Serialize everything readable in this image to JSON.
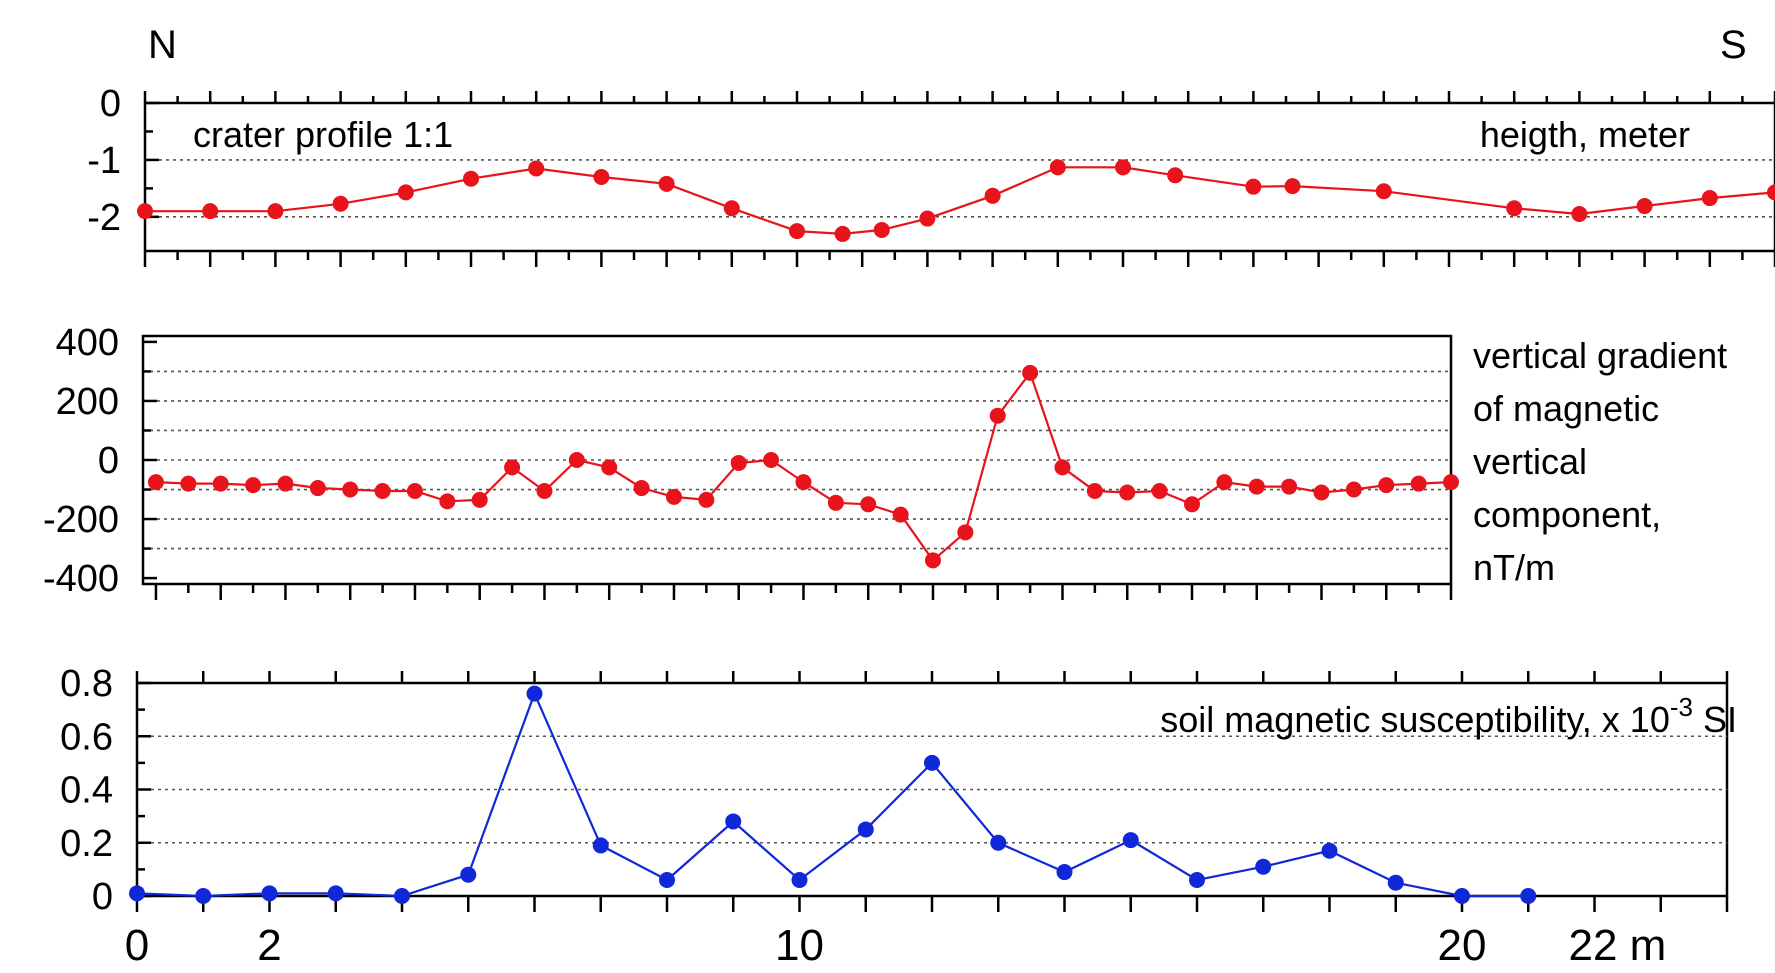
{
  "directions": {
    "left": "N",
    "right": "S"
  },
  "x_axis": {
    "tick_labels": [
      {
        "value": 0,
        "text": "0"
      },
      {
        "value": 2,
        "text": "2"
      },
      {
        "value": 10,
        "text": "10"
      },
      {
        "value": 20,
        "text": "20"
      },
      {
        "value": 22,
        "text": "22 m"
      }
    ]
  },
  "colors": {
    "red_series": "#e8131b",
    "blue_series": "#1028d8",
    "axis": "#000000"
  },
  "chart_data": [
    {
      "type": "line",
      "label_left": "crater profile 1:1",
      "label_right": "heigth, meter",
      "xlim": [
        0,
        25
      ],
      "ylim": [
        -2.6,
        0
      ],
      "y_ticks": [
        0,
        -1,
        -2
      ],
      "y_tick_labels": [
        "0",
        "-1",
        "-2"
      ],
      "grid_y": [
        -1,
        -2
      ],
      "color": "#e8131b",
      "x": [
        0,
        1,
        2,
        3,
        4,
        5,
        6,
        7,
        8,
        9,
        10,
        10.7,
        11.3,
        12,
        13,
        14,
        15,
        15.8,
        17,
        17.6,
        19,
        21,
        22,
        23,
        24,
        25
      ],
      "y": [
        -1.9,
        -1.9,
        -1.9,
        -1.77,
        -1.57,
        -1.33,
        -1.15,
        -1.3,
        -1.42,
        -1.85,
        -2.25,
        -2.3,
        -2.23,
        -2.03,
        -1.63,
        -1.13,
        -1.13,
        -1.27,
        -1.47,
        -1.46,
        -1.55,
        -1.85,
        -1.95,
        -1.81,
        -1.67,
        -1.57
      ]
    },
    {
      "type": "line",
      "label_lines": [
        "vertical gradient",
        "of magnetic",
        "vertical",
        "component,",
        "nT/m"
      ],
      "xlim": [
        -0.2,
        20
      ],
      "ylim": [
        -420,
        420
      ],
      "y_ticks": [
        400,
        200,
        0,
        -200,
        -400
      ],
      "y_tick_labels": [
        "400",
        "200",
        "0",
        "-200",
        "-400"
      ],
      "grid_y": [
        300,
        200,
        100,
        0,
        -100,
        -200,
        -300
      ],
      "color": "#e8131b",
      "x": [
        0,
        0.5,
        1,
        1.5,
        2,
        2.5,
        3,
        3.5,
        4,
        4.5,
        5,
        5.5,
        6,
        6.5,
        7,
        7.5,
        8,
        8.5,
        9,
        9.5,
        10,
        10.5,
        11,
        11.5,
        12,
        12.5,
        13,
        13.5,
        14,
        14.5,
        15,
        15.5,
        16,
        16.5,
        17,
        17.5,
        18,
        18.5,
        19,
        19.5,
        20
      ],
      "y": [
        -75,
        -80,
        -80,
        -85,
        -80,
        -95,
        -100,
        -105,
        -105,
        -140,
        -135,
        -25,
        -105,
        0,
        -25,
        -95,
        -125,
        -135,
        -10,
        0,
        -75,
        -145,
        -150,
        -185,
        -340,
        -245,
        150,
        295,
        -25,
        -105,
        -110,
        -105,
        -150,
        -75,
        -90,
        -90,
        -110,
        -100,
        -85,
        -80,
        -75
      ]
    },
    {
      "type": "line",
      "label": "soil magnetic susceptibility, x 10",
      "label_exponent": "-3",
      "label_unit": "SI",
      "xlim": [
        0,
        24
      ],
      "ylim": [
        0,
        0.8
      ],
      "y_ticks": [
        0,
        0.2,
        0.4,
        0.6,
        0.8
      ],
      "y_tick_labels": [
        "0",
        "0.2",
        "0.4",
        "0.6",
        "0.8"
      ],
      "grid_y": [
        0.2,
        0.4,
        0.6
      ],
      "color": "#1028d8",
      "x": [
        0,
        1,
        2,
        3,
        4,
        5,
        6,
        7,
        8,
        9,
        10,
        11,
        12,
        13,
        14,
        15,
        16,
        17,
        18,
        19,
        20,
        21
      ],
      "y": [
        0.01,
        0.0,
        0.01,
        0.01,
        0.0,
        0.08,
        0.76,
        0.19,
        0.06,
        0.28,
        0.06,
        0.25,
        0.5,
        0.2,
        0.09,
        0.21,
        0.06,
        0.11,
        0.17,
        0.05,
        0.0,
        0.0
      ]
    }
  ]
}
